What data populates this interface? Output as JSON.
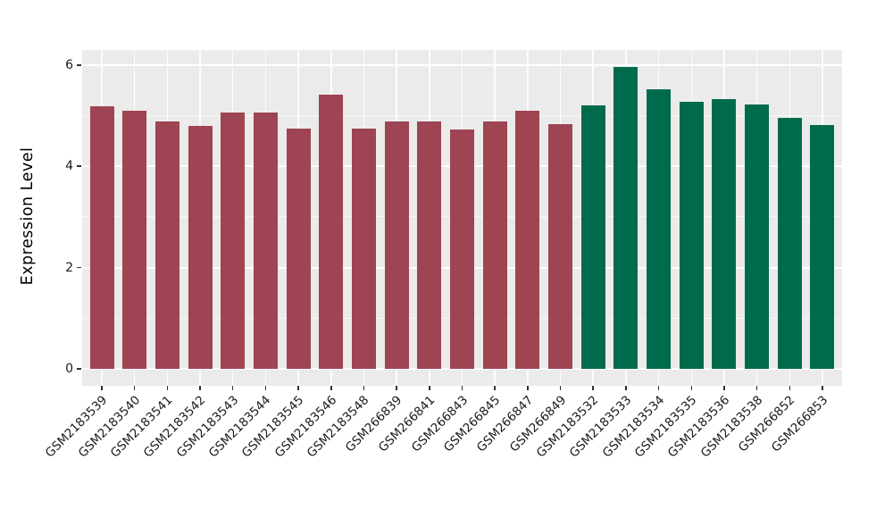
{
  "chart_data": {
    "type": "bar",
    "title": "",
    "xlabel": "",
    "ylabel": "Expression Level",
    "ylim": [
      0,
      6.3
    ],
    "yticks": [
      0,
      2,
      4,
      6
    ],
    "yticks_minor": [
      1,
      3,
      5
    ],
    "grid": true,
    "legend": false,
    "panel_background": "#EBEBEB",
    "gridline_color": "#FFFFFF",
    "categories": [
      "GSM2183539",
      "GSM2183540",
      "GSM2183541",
      "GSM2183542",
      "GSM2183543",
      "GSM2183544",
      "GSM2183545",
      "GSM2183546",
      "GSM2183548",
      "GSM266839",
      "GSM266841",
      "GSM266843",
      "GSM266845",
      "GSM266847",
      "GSM266849",
      "GSM2183532",
      "GSM2183533",
      "GSM2183534",
      "GSM2183535",
      "GSM2183536",
      "GSM2183538",
      "GSM266852",
      "GSM266853"
    ],
    "values": [
      5.19,
      5.09,
      4.88,
      4.79,
      5.07,
      5.06,
      4.74,
      5.42,
      4.75,
      4.88,
      4.89,
      4.73,
      4.88,
      5.09,
      4.83,
      5.21,
      5.97,
      5.52,
      5.28,
      5.32,
      5.22,
      4.95,
      4.82
    ],
    "bar_group_index": [
      0,
      0,
      0,
      0,
      0,
      0,
      0,
      0,
      0,
      0,
      0,
      0,
      0,
      0,
      0,
      1,
      1,
      1,
      1,
      1,
      1,
      1,
      1
    ],
    "groups": [
      {
        "name": "group-1",
        "color": "#9E4452"
      },
      {
        "name": "group-2",
        "color": "#006B4C"
      }
    ]
  }
}
